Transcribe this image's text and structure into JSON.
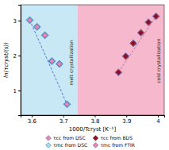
{
  "chart_data": {
    "type": "scatter",
    "xlabel": "1000/Tcryst [K⁻¹]",
    "ylabel": "ln(τcryst/(s))",
    "xlim": [
      3.565,
      4.02
    ],
    "ylim": [
      0.3,
      3.45
    ],
    "xticks": [
      3.6,
      3.7,
      3.8,
      3.9,
      4.0
    ],
    "yticks": [
      1,
      2,
      3
    ],
    "grid": false,
    "legend": "bottom",
    "regions": [
      {
        "x": [
          3.565,
          3.745
        ],
        "color": "#c8e8f5"
      },
      {
        "x": [
          3.745,
          4.02
        ],
        "color": "#f5b8cc"
      }
    ],
    "annotations": [
      {
        "text": "melt crystallization",
        "x": 3.735,
        "y": 1.8
      },
      {
        "text": "cold crystallization",
        "x": 4.01,
        "y": 1.85
      }
    ],
    "trend_lines": [
      {
        "x": [
          3.594,
          3.712
        ],
        "y": [
          3.01,
          0.61
        ],
        "color": "#5577bb",
        "line_style": "dashed"
      },
      {
        "x": [
          3.875,
          3.994
        ],
        "y": [
          1.52,
          3.12
        ],
        "color": "#bb7799",
        "line_style": "dashed"
      }
    ],
    "series": [
      {
        "name": "τcc from DSC",
        "color": "#ee88aa",
        "marker": "diamond",
        "x": [
          3.594,
          3.617,
          3.642,
          3.664,
          3.688,
          3.712
        ],
        "values": [
          3.01,
          2.82,
          2.58,
          1.84,
          1.76,
          0.61
        ]
      },
      {
        "name": "τcc from BDS",
        "color": "#881122",
        "marker": "diamond",
        "x": [
          3.875,
          3.898,
          3.922,
          3.946,
          3.97,
          3.994
        ],
        "values": [
          1.52,
          1.98,
          2.35,
          2.65,
          2.95,
          3.12
        ]
      },
      {
        "name": "τmc from DSC",
        "color": "#aaddee",
        "marker": "diamond",
        "x": [
          3.594,
          3.617,
          3.642,
          3.664,
          3.688,
          3.712
        ],
        "values": [
          3.01,
          2.82,
          2.58,
          1.84,
          1.76,
          0.61
        ]
      },
      {
        "name": "τmc from FTIR",
        "color": "#ee88aa",
        "marker": "diamond",
        "x": [
          3.875,
          3.898,
          3.922,
          3.946,
          3.97,
          3.994
        ],
        "values": [
          1.52,
          1.98,
          2.35,
          2.65,
          2.95,
          3.12
        ]
      }
    ]
  }
}
